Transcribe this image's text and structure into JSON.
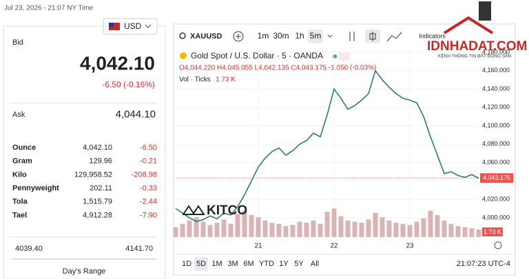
{
  "header": {
    "timestamp": "Jul 23, 2026 - 21:07 NY Time",
    "currency": "USD"
  },
  "quote": {
    "bid_label": "Bid",
    "bid": "4,042.10",
    "change": "-6.50 (-0.16%)",
    "ask_label": "Ask",
    "ask": "4,044.10"
  },
  "table": {
    "rows": [
      [
        "Ounce",
        "4,042.10",
        "-6.50"
      ],
      [
        "Gram",
        "129.96",
        "-0.21"
      ],
      [
        "Kilo",
        "129,958.52",
        "-208.98"
      ],
      [
        "Pennyweight",
        "202.11",
        "-0.33"
      ],
      [
        "Tola",
        "1,515.79",
        "-2.44"
      ],
      [
        "Tael",
        "4,912.28",
        "-7.90"
      ]
    ]
  },
  "range": {
    "low": "4039.40",
    "high": "4141.70",
    "label": "Day's Range"
  },
  "toolbar": {
    "symbol": "XAUUSD",
    "intervals": [
      "1m",
      "30m",
      "1h",
      "5m"
    ],
    "active_interval": 3,
    "indicators": "Indicators"
  },
  "logo": {
    "name": "IDNHADAT.COM",
    "tagline": "KÊNH THÔNG TIN BẤT ĐỘNG SẢN"
  },
  "watermark": "KITCO",
  "legend": {
    "instrument": "Gold Spot / U.S. Dollar · 5 · OANDA",
    "ohlc": "O4,044.220 H4,045.055 L4,042.135 C4,043.175 -1.050 (-0.03%)",
    "volume_label": "Vol · Ticks",
    "volume_value": "1.73 K"
  },
  "chart_data": {
    "type": "line",
    "series": [
      {
        "name": "XAUUSD",
        "color": "#2e7d5b",
        "values": [
          4010,
          4005,
          4000,
          3996,
          3998,
          4002,
          3999,
          4005,
          4003,
          4012,
          4025,
          4040,
          4055,
          4065,
          4072,
          4076,
          4068,
          4073,
          4080,
          4084,
          4092,
          4088,
          4112,
          4140,
          4130,
          4118,
          4122,
          4128,
          4135,
          4160,
          4150,
          4142,
          4135,
          4130,
          4128,
          4125,
          4110,
          4088,
          4068,
          4048,
          4050,
          4046,
          4044,
          4047,
          4043
        ]
      }
    ],
    "volume": {
      "color": "#d8b4b4",
      "values": [
        900,
        1200,
        1500,
        1800,
        1400,
        1100,
        1300,
        1600,
        1200,
        2100,
        2400,
        2000,
        1800,
        1500,
        1300,
        1200,
        1000,
        1100,
        1400,
        1300,
        1500,
        1200,
        2300,
        2600,
        1900,
        1500,
        1400,
        1300,
        1600,
        2200,
        1800,
        1500,
        1300,
        1200,
        1100,
        1400,
        1700,
        2400,
        2000,
        1500,
        1200,
        1000,
        900,
        800,
        700
      ],
      "ylim": [
        0,
        5000
      ]
    },
    "xlim": [
      0,
      44
    ],
    "xticks": [
      {
        "value": 12,
        "label": "21"
      },
      {
        "value": 23,
        "label": "22"
      },
      {
        "value": 34,
        "label": "23"
      }
    ],
    "ylim": [
      3979,
      4186
    ],
    "yticks": [
      {
        "value": 4000,
        "label": "4,000.000"
      },
      {
        "value": 4020,
        "label": "4,020.000"
      },
      {
        "value": 4060,
        "label": "4,060.000"
      },
      {
        "value": 4080,
        "label": "4,080.000"
      },
      {
        "value": 4100,
        "label": "4,100.000"
      },
      {
        "value": 4120,
        "label": "4,120.000"
      },
      {
        "value": 4140,
        "label": "4,140.000"
      },
      {
        "value": 4160,
        "label": "4,160.000"
      },
      {
        "value": 4180,
        "label": "4,180.000"
      }
    ],
    "last_price": {
      "value": 4043.175,
      "label": "4,043.175"
    },
    "volume_tag": "1.73 K",
    "grid": true
  },
  "ranges": {
    "buttons": [
      "1D",
      "5D",
      "1M",
      "3M",
      "6M",
      "YTD",
      "1Y",
      "5Y",
      "All"
    ],
    "active": 1,
    "time": "21:07:23 UTC-4"
  }
}
